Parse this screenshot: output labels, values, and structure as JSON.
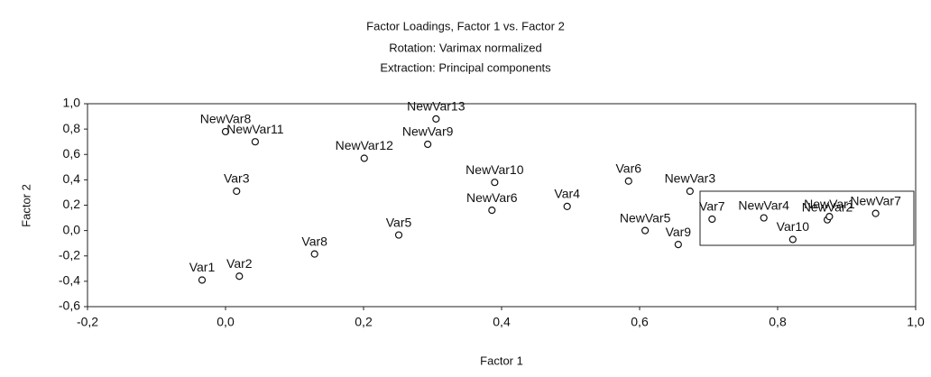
{
  "chart_data": {
    "type": "scatter",
    "title": "Factor Loadings, Factor 1 vs. Factor 2",
    "subtitle": [
      "Rotation: Varimax normalized",
      "Extraction: Principal components"
    ],
    "x_label": "Factor 1",
    "y_label": "Factor 2",
    "labels": [
      "NewVar8",
      "NewVar11",
      "NewVar13",
      "NewVar9",
      "NewVar12",
      "Var3",
      "NewVar10",
      "NewVar6",
      "Var4",
      "Var6",
      "NewVar3",
      "NewVar5",
      "Var9",
      "Var7",
      "NewVar4",
      "Var10",
      "NewVar2",
      "NewVar1",
      "NewVar7",
      "Var5",
      "Var8",
      "Var1",
      "Var2"
    ],
    "x": [
      0.0,
      0.043,
      0.305,
      0.293,
      0.201,
      0.016,
      0.39,
      0.386,
      0.495,
      0.584,
      0.673,
      0.608,
      0.656,
      0.705,
      0.78,
      0.822,
      0.872,
      0.875,
      0.942,
      0.251,
      0.129,
      -0.034,
      0.02
    ],
    "y": [
      0.78,
      0.7,
      0.88,
      0.68,
      0.57,
      0.31,
      0.38,
      0.16,
      0.19,
      0.39,
      0.31,
      0.0,
      -0.11,
      0.09,
      0.1,
      -0.07,
      0.085,
      0.11,
      0.135,
      -0.035,
      -0.185,
      -0.39,
      -0.36
    ],
    "xlim": [
      -0.2,
      1.0
    ],
    "ylim": [
      -0.6,
      1.0
    ],
    "xticks": [
      {
        "value": -0.2,
        "label": "-0,2"
      },
      {
        "value": 0,
        "label": "0,0"
      },
      {
        "value": 0.2,
        "label": "0,2"
      },
      {
        "value": 0.4,
        "label": "0,4"
      },
      {
        "value": 0.6,
        "label": "0,6"
      },
      {
        "value": 0.8,
        "label": "0,8"
      },
      {
        "value": 1.0,
        "label": "1,0"
      }
    ],
    "yticks": [
      {
        "value": -0.6,
        "label": "-0,6"
      },
      {
        "value": -0.4,
        "label": "-0,4"
      },
      {
        "value": -0.2,
        "label": "-0,2"
      },
      {
        "value": 0,
        "label": "0,0"
      },
      {
        "value": 0.2,
        "label": "0,2"
      },
      {
        "value": 0.4,
        "label": "0,4"
      },
      {
        "value": 0.6,
        "label": "0,6"
      },
      {
        "value": 0.8,
        "label": "0,8"
      },
      {
        "value": 1.0,
        "label": "1,0"
      }
    ],
    "grid": false,
    "color": "#111111"
  }
}
